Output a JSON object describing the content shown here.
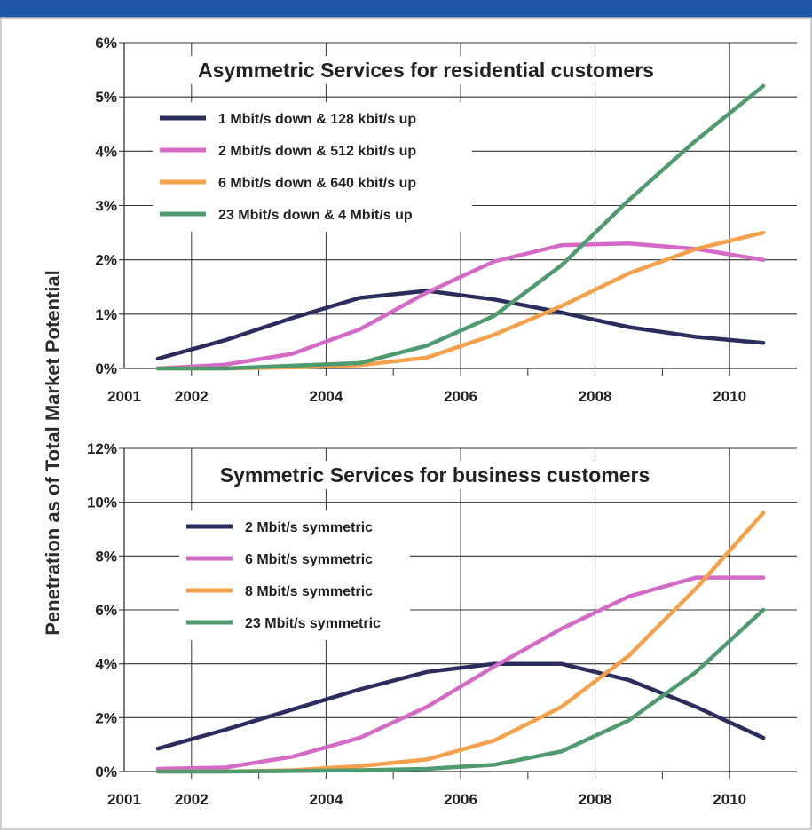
{
  "y_axis_label": "Penetration as of Total Market Potential",
  "chart_data": [
    {
      "type": "line",
      "title": "Asymmetric Services for residential customers",
      "xlabel": "",
      "ylabel": "Penetration as of Total Market Potential",
      "x_ticks": [
        "2001",
        "2002",
        "2004",
        "2006",
        "2008",
        "2010"
      ],
      "x_range": [
        2001,
        2011
      ],
      "y_ticks": [
        "0%",
        "1%",
        "2%",
        "3%",
        "4%",
        "5%",
        "6%"
      ],
      "ylim": [
        0,
        6
      ],
      "grid": true,
      "legend_position": "top-left",
      "x": [
        2001.5,
        2002.5,
        2003.5,
        2004.5,
        2005.5,
        2006.5,
        2007.5,
        2008.5,
        2009.5,
        2010.5
      ],
      "series": [
        {
          "name": "1 Mbit/s down & 128 kbit/s up",
          "color": "#2b2d5c",
          "values": [
            0.18,
            0.52,
            0.93,
            1.3,
            1.43,
            1.27,
            1.03,
            0.76,
            0.58,
            0.47
          ]
        },
        {
          "name": "2 Mbit/s down & 512 kbit/s up",
          "color": "#d36bc6",
          "values": [
            0.0,
            0.07,
            0.27,
            0.72,
            1.4,
            1.97,
            2.27,
            2.3,
            2.2,
            2.0
          ]
        },
        {
          "name": "6 Mbit/s down & 640 kbit/s up",
          "color": "#f5a04b",
          "values": [
            0.0,
            0.0,
            0.02,
            0.06,
            0.2,
            0.62,
            1.15,
            1.75,
            2.2,
            2.5
          ]
        },
        {
          "name": "23 Mbit/s down & 4 Mbit/s up",
          "color": "#4f9a6e",
          "values": [
            0.0,
            0.0,
            0.05,
            0.1,
            0.42,
            0.97,
            1.9,
            3.1,
            4.2,
            5.2
          ]
        }
      ]
    },
    {
      "type": "line",
      "title": "Symmetric Services for business customers",
      "xlabel": "",
      "ylabel": "Penetration as of Total Market Potential",
      "x_ticks": [
        "2001",
        "2002",
        "2004",
        "2006",
        "2008",
        "2010"
      ],
      "x_range": [
        2001,
        2011
      ],
      "y_ticks": [
        "0%",
        "2%",
        "4%",
        "6%",
        "8%",
        "10%",
        "12%"
      ],
      "ylim": [
        0,
        12
      ],
      "grid": true,
      "legend_position": "top-left",
      "x": [
        2001.5,
        2002.5,
        2003.5,
        2004.5,
        2005.5,
        2006.5,
        2007.5,
        2008.5,
        2009.5,
        2010.5
      ],
      "series": [
        {
          "name": "2 Mbit/s symmetric",
          "color": "#2b2d5c",
          "values": [
            0.85,
            1.55,
            2.3,
            3.05,
            3.7,
            4.0,
            4.0,
            3.4,
            2.4,
            1.25
          ]
        },
        {
          "name": "6 Mbit/s symmetric",
          "color": "#d36bc6",
          "values": [
            0.1,
            0.15,
            0.55,
            1.25,
            2.4,
            3.9,
            5.3,
            6.5,
            7.2,
            7.2
          ]
        },
        {
          "name": "8 Mbit/s symmetric",
          "color": "#f5a04b",
          "values": [
            0.0,
            0.0,
            0.05,
            0.2,
            0.45,
            1.15,
            2.4,
            4.3,
            6.8,
            9.6
          ]
        },
        {
          "name": "23 Mbit/s symmetric",
          "color": "#4f9a6e",
          "values": [
            0.0,
            0.0,
            0.02,
            0.05,
            0.1,
            0.25,
            0.75,
            1.9,
            3.7,
            6.0
          ]
        }
      ]
    }
  ],
  "colors": {
    "top_bar": "#1f56a8",
    "grid": "#333333",
    "frame": "#bdbdbd"
  }
}
